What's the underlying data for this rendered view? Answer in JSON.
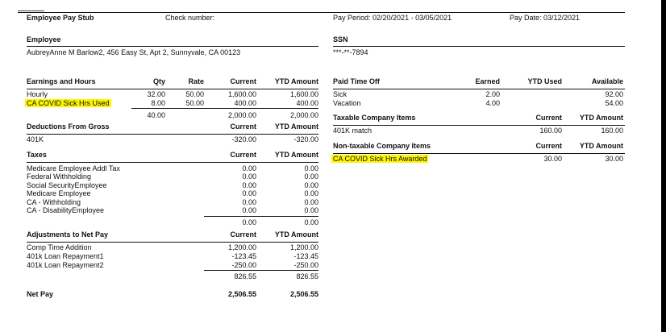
{
  "header": {
    "title": "Employee Pay Stub",
    "check_number": "Check number:",
    "pay_period": "Pay Period: 02/20/2021 - 03/05/2021",
    "pay_date": "Pay Date: 03/12/2021"
  },
  "employee": {
    "label": "Employee",
    "value": "AubreyAnne M Barlow2, 456 Easy St, Apt 2, Sunnyvale, CA 00123"
  },
  "ssn": {
    "label": "SSN",
    "value": "***-**-7894"
  },
  "earnings": {
    "title": "Earnings and Hours",
    "columns": [
      "Qty",
      "Rate",
      "Current",
      "YTD Amount"
    ],
    "rows": [
      {
        "name": "Hourly",
        "qty": "32.00",
        "rate": "50.00",
        "current": "1,600.00",
        "ytd": "1,600.00"
      },
      {
        "name": "CA COVID Sick Hrs Used",
        "qty": "8.00",
        "rate": "50.00",
        "current": "400.00",
        "ytd": "400.00",
        "highlight": true
      }
    ],
    "total": {
      "qty": "40.00",
      "current": "2,000.00",
      "ytd": "2,000.00"
    }
  },
  "deductions": {
    "title": "Deductions From Gross",
    "columns": [
      "Current",
      "YTD Amount"
    ],
    "rows": [
      {
        "name": "401K",
        "current": "-320.00",
        "ytd": "-320.00"
      }
    ]
  },
  "taxes": {
    "title": "Taxes",
    "columns": [
      "Current",
      "YTD Amount"
    ],
    "rows": [
      {
        "name": "Medicare Employee Addl Tax",
        "current": "0.00",
        "ytd": "0.00"
      },
      {
        "name": "Federal Withholding",
        "current": "0.00",
        "ytd": "0.00"
      },
      {
        "name": "Social SecurityEmployee",
        "current": "0.00",
        "ytd": "0.00"
      },
      {
        "name": "Medicare Employee",
        "current": "0.00",
        "ytd": "0.00"
      },
      {
        "name": "CA - Withholding",
        "current": "0.00",
        "ytd": "0.00"
      },
      {
        "name": "CA - DisabilityEmployee",
        "current": "0.00",
        "ytd": "0.00"
      }
    ],
    "total": {
      "current": "0.00",
      "ytd": "0.00"
    }
  },
  "adjustments": {
    "title": "Adjustments to Net Pay",
    "columns": [
      "Current",
      "YTD Amount"
    ],
    "rows": [
      {
        "name": "Comp Time Addition",
        "current": "1,200.00",
        "ytd": "1,200.00"
      },
      {
        "name": "401k Loan Repayment1",
        "current": "-123.45",
        "ytd": "-123.45"
      },
      {
        "name": "401k Loan Repayment2",
        "current": "-250.00",
        "ytd": "-250.00"
      }
    ],
    "total": {
      "current": "826.55",
      "ytd": "826.55"
    }
  },
  "net_pay": {
    "label": "Net Pay",
    "current": "2,506.55",
    "ytd": "2,506.55"
  },
  "pto": {
    "title": "Paid Time Off",
    "columns": [
      "Earned",
      "YTD Used",
      "Available"
    ],
    "rows": [
      {
        "name": "Sick",
        "earned": "2.00",
        "used": "",
        "available": "92.00"
      },
      {
        "name": "Vacation",
        "earned": "4.00",
        "used": "",
        "available": "54.00"
      }
    ]
  },
  "taxable_company": {
    "title": "Taxable Company Items",
    "columns": [
      "Current",
      "YTD Amount"
    ],
    "rows": [
      {
        "name": "401K match",
        "current": "160.00",
        "ytd": "160.00"
      }
    ]
  },
  "nontaxable_company": {
    "title": "Non-taxable Company Items",
    "columns": [
      "Current",
      "YTD Amount"
    ],
    "rows": [
      {
        "name": "CA COVID Sick Hrs Awarded",
        "current": "30.00",
        "ytd": "30.00",
        "highlight": true
      }
    ]
  },
  "colors": {
    "highlight": "#fff500",
    "edge": "#000000"
  }
}
